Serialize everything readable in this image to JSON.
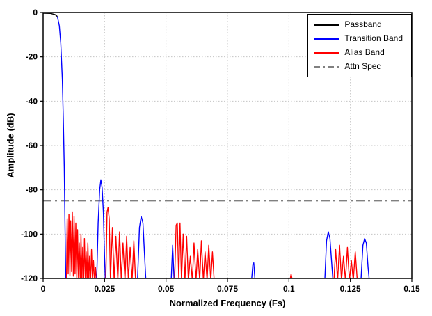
{
  "chart_data": {
    "type": "line",
    "title": "",
    "xlabel": "Normalized Frequency (Fs)",
    "ylabel": "Amplitude (dB)",
    "xlim": [
      0,
      0.15
    ],
    "ylim": [
      -120,
      0
    ],
    "xticks": [
      0,
      0.025,
      0.05,
      0.075,
      0.1,
      0.125,
      0.15
    ],
    "xtick_labels": [
      "0",
      "0.025",
      "0.05",
      "0.075",
      "0.1",
      "0.125",
      "0.15"
    ],
    "yticks": [
      0,
      -20,
      -40,
      -60,
      -80,
      -100,
      -120
    ],
    "ytick_labels": [
      "0",
      "-20",
      "-40",
      "-60",
      "-80",
      "-100",
      "-120"
    ],
    "grid": true,
    "grid_color": "#c4c4c4",
    "axis_color": "#000000",
    "legend": {
      "position": "top-right",
      "items": [
        {
          "label": "Passband",
          "color": "#000000",
          "dash": "solid"
        },
        {
          "label": "Transition Band",
          "color": "#0000ff",
          "dash": "solid"
        },
        {
          "label": "Alias Band",
          "color": "#ff0000",
          "dash": "solid"
        },
        {
          "label": "Attn Spec",
          "color": "#808080",
          "dash": "dashdot"
        }
      ]
    },
    "attn_spec": {
      "label": "Attn Spec",
      "value_db": -85,
      "color": "#808080",
      "dash": "dashdot"
    },
    "series": [
      {
        "name": "passband",
        "band": "passband",
        "color": "#000000",
        "points": [
          [
            0,
            -0.3
          ],
          [
            0.003,
            -0.4
          ],
          [
            0.0048,
            -0.9
          ],
          [
            0.0058,
            -1.8
          ]
        ]
      },
      {
        "name": "transition-main-rolloff",
        "band": "transition",
        "color": "#0000ff",
        "points": [
          [
            0.0058,
            -1.8
          ],
          [
            0.0066,
            -6
          ],
          [
            0.0072,
            -14
          ],
          [
            0.0078,
            -30
          ],
          [
            0.0082,
            -48
          ],
          [
            0.0086,
            -70
          ],
          [
            0.0089,
            -95
          ],
          [
            0.0092,
            -121
          ]
        ]
      },
      {
        "name": "alias-cluster-1",
        "band": "alias",
        "color": "#ff0000",
        "points": [
          [
            0.0095,
            -121
          ],
          [
            0.0098,
            -93
          ],
          [
            0.0102,
            -118
          ],
          [
            0.0105,
            -91
          ],
          [
            0.0109,
            -119
          ],
          [
            0.0112,
            -94
          ],
          [
            0.0116,
            -117
          ],
          [
            0.0119,
            -90
          ],
          [
            0.0123,
            -119
          ],
          [
            0.0126,
            -92
          ],
          [
            0.013,
            -118
          ],
          [
            0.0133,
            -95
          ],
          [
            0.0137,
            -121
          ],
          [
            0.014,
            -98
          ],
          [
            0.0144,
            -121
          ],
          [
            0.0147,
            -104
          ],
          [
            0.0151,
            -121
          ],
          [
            0.0154,
            -100
          ],
          [
            0.0158,
            -121
          ],
          [
            0.0161,
            -106
          ],
          [
            0.0165,
            -121
          ],
          [
            0.0168,
            -102
          ],
          [
            0.0172,
            -121
          ],
          [
            0.0175,
            -108
          ],
          [
            0.0179,
            -121
          ],
          [
            0.0182,
            -104
          ],
          [
            0.0186,
            -121
          ],
          [
            0.0189,
            -110
          ],
          [
            0.0193,
            -121
          ],
          [
            0.0197,
            -107
          ],
          [
            0.0201,
            -121
          ],
          [
            0.0205,
            -112
          ],
          [
            0.0209,
            -121
          ],
          [
            0.0213,
            -115
          ],
          [
            0.0216,
            -121
          ]
        ]
      },
      {
        "name": "transition-lobe-1",
        "band": "transition",
        "color": "#0000ff",
        "points": [
          [
            0.0218,
            -121
          ],
          [
            0.0224,
            -95
          ],
          [
            0.023,
            -80
          ],
          [
            0.0235,
            -75.5
          ],
          [
            0.024,
            -79
          ],
          [
            0.0245,
            -90
          ],
          [
            0.025,
            -110
          ],
          [
            0.0253,
            -121
          ]
        ]
      },
      {
        "name": "alias-cluster-2",
        "band": "alias",
        "color": "#ff0000",
        "points": [
          [
            0.0255,
            -121
          ],
          [
            0.026,
            -90
          ],
          [
            0.0264,
            -88
          ],
          [
            0.0269,
            -93
          ],
          [
            0.0274,
            -121
          ],
          [
            0.0282,
            -97
          ],
          [
            0.0289,
            -121
          ],
          [
            0.0296,
            -101
          ],
          [
            0.0304,
            -121
          ],
          [
            0.0311,
            -99
          ],
          [
            0.0318,
            -121
          ],
          [
            0.0325,
            -104
          ],
          [
            0.0333,
            -121
          ],
          [
            0.034,
            -101
          ],
          [
            0.0347,
            -121
          ],
          [
            0.0354,
            -106
          ],
          [
            0.0362,
            -121
          ],
          [
            0.0369,
            -103
          ],
          [
            0.0376,
            -121
          ]
        ]
      },
      {
        "name": "transition-lobe-2",
        "band": "transition",
        "color": "#0000ff",
        "points": [
          [
            0.0384,
            -121
          ],
          [
            0.0392,
            -97
          ],
          [
            0.0399,
            -92
          ],
          [
            0.0406,
            -95
          ],
          [
            0.0413,
            -110
          ],
          [
            0.0418,
            -121
          ]
        ]
      },
      {
        "name": "transition-lobe-3",
        "band": "transition",
        "color": "#0000ff",
        "points": [
          [
            0.0521,
            -121
          ],
          [
            0.0527,
            -105
          ],
          [
            0.0533,
            -121
          ]
        ]
      },
      {
        "name": "alias-cluster-3",
        "band": "alias",
        "color": "#ff0000",
        "points": [
          [
            0.0535,
            -121
          ],
          [
            0.0541,
            -96
          ],
          [
            0.0546,
            -95
          ],
          [
            0.0552,
            -120
          ],
          [
            0.0557,
            -95
          ],
          [
            0.0563,
            -121
          ],
          [
            0.057,
            -100
          ],
          [
            0.0577,
            -121
          ],
          [
            0.0584,
            -101
          ],
          [
            0.0591,
            -121
          ],
          [
            0.0599,
            -110
          ],
          [
            0.0607,
            -121
          ],
          [
            0.0614,
            -104
          ],
          [
            0.0622,
            -121
          ],
          [
            0.0629,
            -107
          ],
          [
            0.0637,
            -121
          ],
          [
            0.0644,
            -103
          ],
          [
            0.0652,
            -121
          ],
          [
            0.0659,
            -108
          ],
          [
            0.0667,
            -121
          ],
          [
            0.0674,
            -105
          ],
          [
            0.0682,
            -121
          ],
          [
            0.0689,
            -108
          ],
          [
            0.0696,
            -121
          ]
        ]
      },
      {
        "name": "transition-lobe-4",
        "band": "transition",
        "color": "#0000ff",
        "points": [
          [
            0.0848,
            -121
          ],
          [
            0.0853,
            -114
          ],
          [
            0.0857,
            -113
          ],
          [
            0.0862,
            -121
          ]
        ]
      },
      {
        "name": "alias-lobe-4",
        "band": "alias",
        "color": "#ff0000",
        "points": [
          [
            0.1004,
            -121
          ],
          [
            0.1009,
            -118
          ],
          [
            0.1014,
            -121
          ]
        ]
      },
      {
        "name": "transition-lobe-5",
        "band": "transition",
        "color": "#0000ff",
        "points": [
          [
            0.1146,
            -121
          ],
          [
            0.1153,
            -103
          ],
          [
            0.116,
            -99
          ],
          [
            0.1167,
            -102
          ],
          [
            0.1174,
            -113
          ],
          [
            0.1179,
            -121
          ]
        ]
      },
      {
        "name": "alias-cluster-5",
        "band": "alias",
        "color": "#ff0000",
        "points": [
          [
            0.1183,
            -121
          ],
          [
            0.119,
            -107
          ],
          [
            0.1198,
            -121
          ],
          [
            0.1206,
            -105
          ],
          [
            0.1214,
            -121
          ],
          [
            0.1222,
            -110
          ],
          [
            0.123,
            -121
          ],
          [
            0.1238,
            -106
          ],
          [
            0.1246,
            -121
          ],
          [
            0.1254,
            -112
          ],
          [
            0.1262,
            -121
          ],
          [
            0.127,
            -108
          ],
          [
            0.1278,
            -121
          ]
        ]
      },
      {
        "name": "transition-lobe-6",
        "band": "transition",
        "color": "#0000ff",
        "points": [
          [
            0.1293,
            -121
          ],
          [
            0.1301,
            -105
          ],
          [
            0.1308,
            -102
          ],
          [
            0.1315,
            -104
          ],
          [
            0.1322,
            -115
          ],
          [
            0.1327,
            -121
          ]
        ]
      }
    ]
  }
}
